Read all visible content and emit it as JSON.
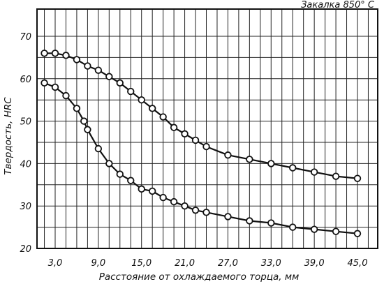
{
  "chart_data": {
    "type": "line",
    "title": "Закалка 850° С",
    "xlabel": "Расстояние от охлаждаемого торца, мм",
    "ylabel": "Твердость, HRC",
    "xlim": [
      1.5,
      46.5
    ],
    "ylim": [
      20,
      75
    ],
    "x_ticks": [
      "3,0",
      "9,0",
      "15,0",
      "21,0",
      "27,0",
      "33,0",
      "39,0",
      "45,0"
    ],
    "x_tick_values": [
      3,
      9,
      15,
      21,
      27,
      33,
      39,
      45
    ],
    "y_ticks": [
      "20",
      "30",
      "40",
      "50",
      "60",
      "70"
    ],
    "y_tick_values": [
      20,
      30,
      40,
      50,
      60,
      70
    ],
    "grid": true,
    "series": [
      {
        "x": [
          1.5,
          3.0,
          4.5,
          6.0,
          7.5,
          9.0,
          10.5,
          12.0,
          13.5,
          15.0,
          16.5,
          18.0,
          19.5,
          21.0,
          22.5,
          24.0,
          27.0,
          30.0,
          33.0,
          36.0,
          39.0,
          42.0,
          45.0
        ],
        "values": [
          66,
          66,
          65.5,
          64.5,
          63,
          62,
          60.5,
          59,
          57,
          55,
          53,
          51,
          48.5,
          47,
          45.5,
          44,
          42,
          41,
          40,
          39,
          38,
          37,
          36.5
        ]
      },
      {
        "x": [
          1.5,
          3.0,
          4.5,
          6.0,
          7.0,
          7.5,
          9.0,
          10.5,
          12.0,
          13.5,
          15.0,
          16.5,
          18.0,
          19.5,
          21.0,
          22.5,
          24.0,
          27.0,
          30.0,
          33.0,
          36.0,
          39.0,
          42.0,
          45.0
        ],
        "values": [
          59,
          58,
          56,
          53,
          50,
          48,
          43.5,
          40,
          37.5,
          36,
          34,
          33.5,
          32,
          31,
          30,
          29,
          28.5,
          27.5,
          26.5,
          26,
          25,
          24.5,
          24,
          23.5
        ]
      }
    ]
  }
}
